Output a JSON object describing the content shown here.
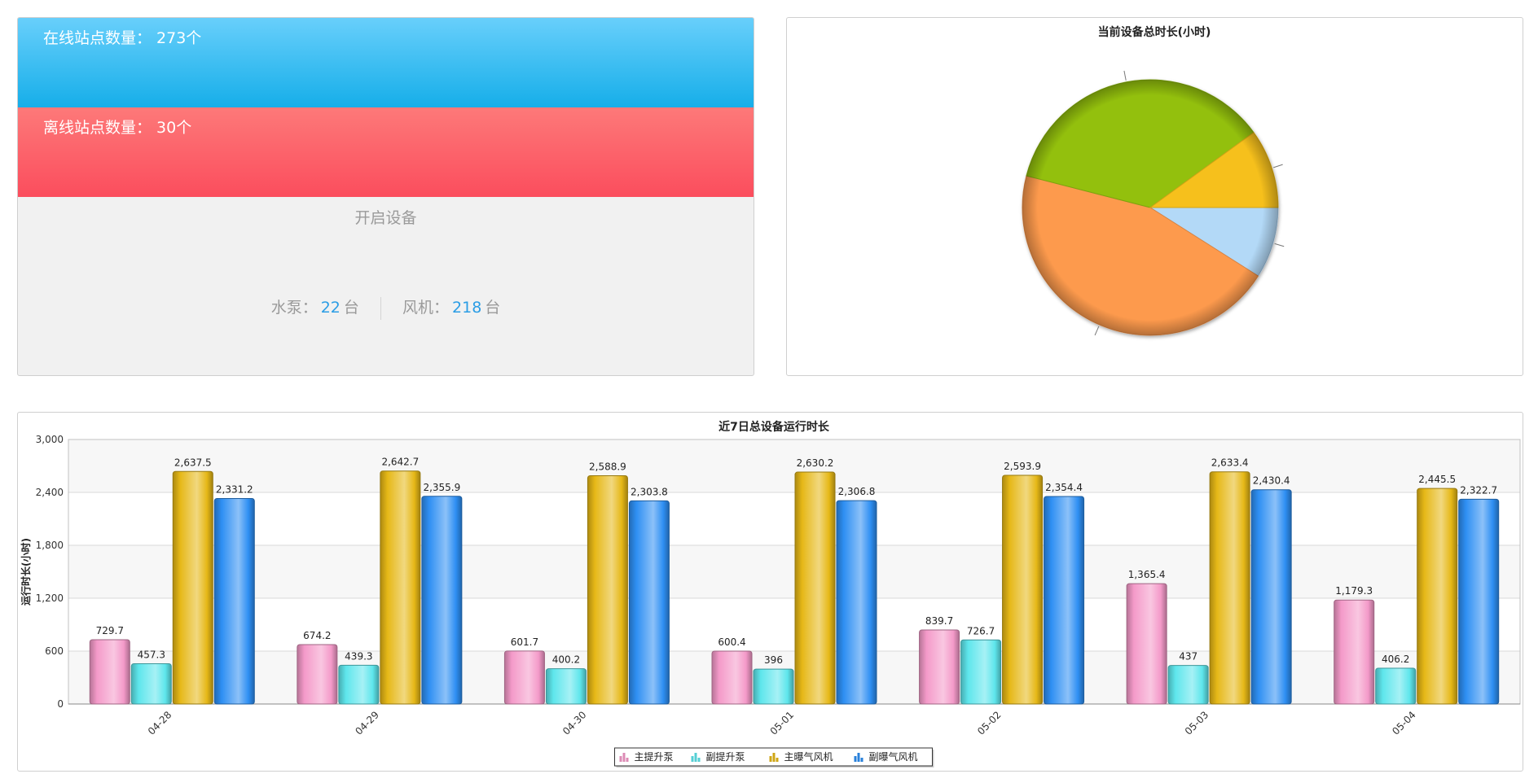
{
  "stats": {
    "online_label": "在线站点数量：",
    "online_value": "273个",
    "offline_label": "离线站点数量：",
    "offline_value": "30个",
    "equipment_title": "开启设备",
    "pump_label": "水泵：",
    "pump_value": "22",
    "pump_unit": "台",
    "fan_label": "风机：",
    "fan_value": "218",
    "fan_unit": "台"
  },
  "chart_data": [
    {
      "type": "pie",
      "title": "当前设备总时长(小时)",
      "slices": [
        {
          "value": 9,
          "color": "#b3d9f7"
        },
        {
          "value": 45,
          "color": "#fd9a4e"
        },
        {
          "value": 36,
          "color": "#93c010"
        },
        {
          "value": 10,
          "color": "#f6c01a"
        }
      ],
      "start_angle_deg": 0,
      "direction": "clockwise",
      "legend": "none"
    },
    {
      "type": "bar",
      "title": "近7日总设备运行时长",
      "ylabel": "运行时长(小时)",
      "xlabel": "",
      "ylim": [
        0,
        3000
      ],
      "yticks": [
        0,
        600,
        1200,
        1800,
        2400,
        3000
      ],
      "ytick_labels": [
        "0",
        "600",
        "1,200",
        "1,800",
        "2,400",
        "3,000"
      ],
      "grid": true,
      "legend": "bottom-center",
      "categories": [
        "04-28",
        "04-29",
        "04-30",
        "05-01",
        "05-02",
        "05-03",
        "05-04"
      ],
      "series": [
        {
          "name": "主提升泵",
          "color": "#f49ac9",
          "values": [
            729.7,
            674.2,
            601.7,
            600.4,
            839.7,
            1365.4,
            1179.3
          ],
          "labels": [
            "729.7",
            "674.2",
            "601.7",
            "600.4",
            "839.7",
            "1,365.4",
            "1,179.3"
          ]
        },
        {
          "name": "副提升泵",
          "color": "#5ee6ec",
          "values": [
            457.3,
            439.3,
            400.2,
            396,
            726.7,
            437,
            406.2
          ],
          "labels": [
            "457.3",
            "439.3",
            "400.2",
            "396",
            "726.7",
            "437",
            "406.2"
          ]
        },
        {
          "name": "主曝气风机",
          "color": "#e6b817",
          "values": [
            2637.5,
            2642.7,
            2588.9,
            2630.2,
            2593.9,
            2633.4,
            2445.5
          ],
          "labels": [
            "2,637.5",
            "2,642.7",
            "2,588.9",
            "2,630.2",
            "2,593.9",
            "2,633.4",
            "2,445.5"
          ]
        },
        {
          "name": "副曝气风机",
          "color": "#2e8ff3",
          "values": [
            2331.2,
            2355.9,
            2303.8,
            2306.8,
            2354.4,
            2430.4,
            2322.7
          ],
          "labels": [
            "2,331.2",
            "2,355.9",
            "2,303.8",
            "2,306.8",
            "2,354.4",
            "2,430.4",
            "2,322.7"
          ]
        }
      ]
    }
  ]
}
